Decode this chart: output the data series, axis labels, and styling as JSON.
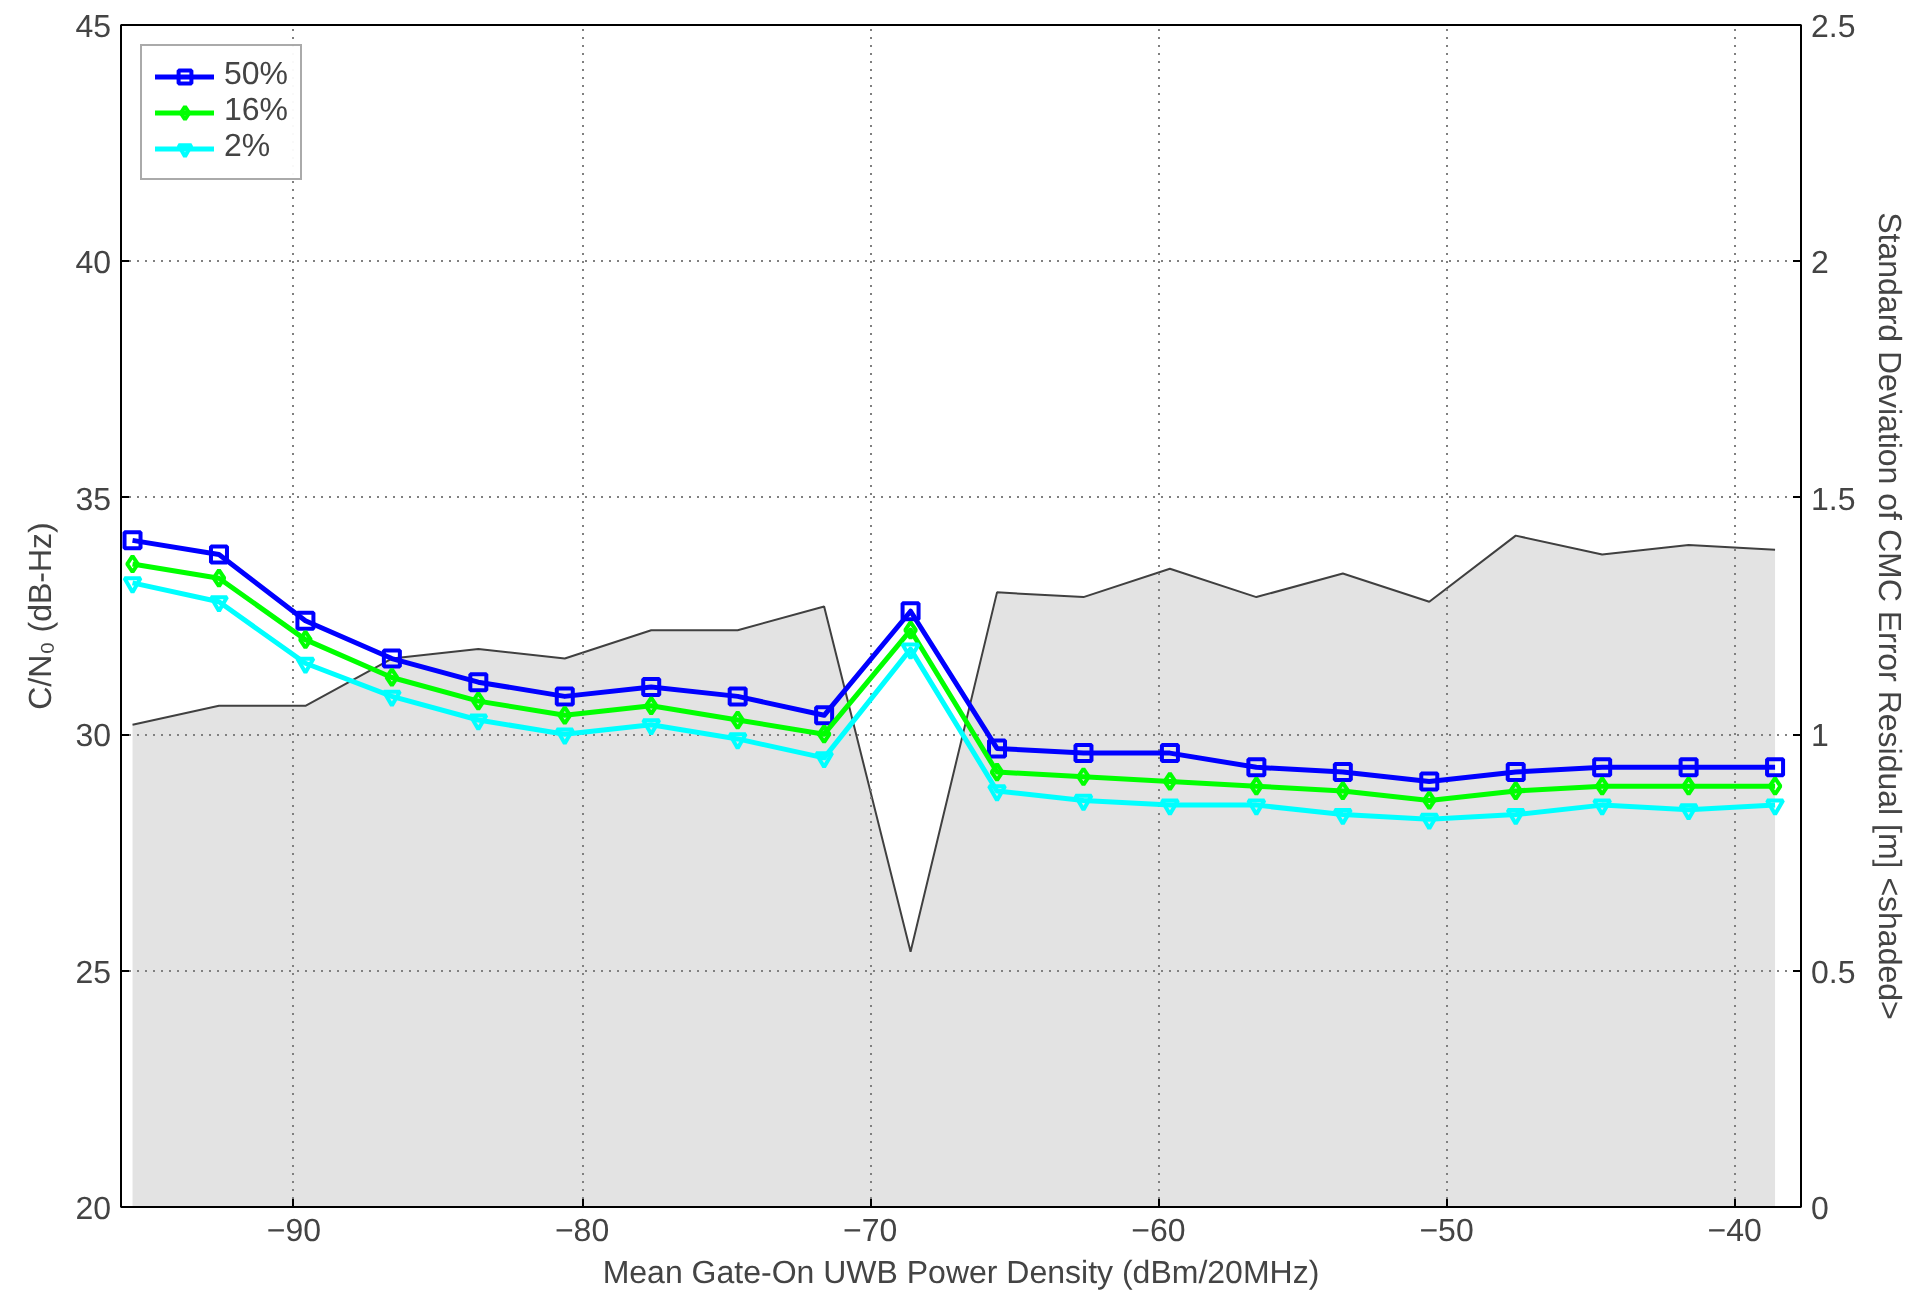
{
  "chart_data": {
    "type": "line",
    "xlabel": "Mean Gate-On UWB Power Density (dBm/20MHz)",
    "ylabel": "C/N₀ (dB-Hz)",
    "y2label": "Standard Deviation of CMC Error Residual [m] <shaded>",
    "x": [
      -95.6,
      -92.6,
      -89.6,
      -86.6,
      -83.6,
      -80.6,
      -77.6,
      -74.6,
      -71.6,
      -68.6,
      -65.6,
      -62.6,
      -59.6,
      -56.6,
      -53.6,
      -50.6,
      -47.6,
      -44.6,
      -41.6,
      -38.6
    ],
    "xlim": [
      -96,
      -37.7
    ],
    "xticks": [
      -90,
      -80,
      -70,
      -60,
      -50,
      -40
    ],
    "ylim": [
      20,
      45
    ],
    "yticks": [
      20,
      25,
      30,
      35,
      40,
      45
    ],
    "y2lim": [
      0,
      2.5
    ],
    "y2ticks": [
      0,
      0.5,
      1,
      1.5,
      2,
      2.5
    ],
    "grid": true,
    "legend": "top left",
    "line_style": "solid",
    "series": [
      {
        "type": "area",
        "axis": "y2",
        "color": "#e3e3e3",
        "values": [
          1.02,
          1.06,
          1.06,
          1.16,
          1.18,
          1.16,
          1.22,
          1.22,
          1.27,
          0.54,
          1.3,
          1.29,
          1.35,
          1.29,
          1.34,
          1.28,
          1.42,
          1.38,
          1.4,
          1.39
        ]
      },
      {
        "name": "50%",
        "color": "#0000ff",
        "marker": "square",
        "values": [
          34.1,
          33.8,
          32.4,
          31.6,
          31.1,
          30.8,
          31.0,
          30.8,
          30.4,
          32.6,
          29.7,
          29.6,
          29.6,
          29.3,
          29.2,
          29.0,
          29.2,
          29.3,
          29.3,
          29.3
        ]
      },
      {
        "name": "16%",
        "color": "#00ff00",
        "marker": "diamond",
        "values": [
          33.6,
          33.3,
          32.0,
          31.2,
          30.7,
          30.4,
          30.6,
          30.3,
          30.0,
          32.2,
          29.2,
          29.1,
          29.0,
          28.9,
          28.8,
          28.6,
          28.8,
          28.9,
          28.9,
          28.9
        ]
      },
      {
        "name": "2%",
        "color": "#00ffff",
        "marker": "triangle",
        "values": [
          33.2,
          32.8,
          31.5,
          30.8,
          30.3,
          30.0,
          30.2,
          29.9,
          29.5,
          31.8,
          28.8,
          28.6,
          28.5,
          28.5,
          28.3,
          28.2,
          28.3,
          28.5,
          28.4,
          28.5
        ]
      }
    ]
  }
}
